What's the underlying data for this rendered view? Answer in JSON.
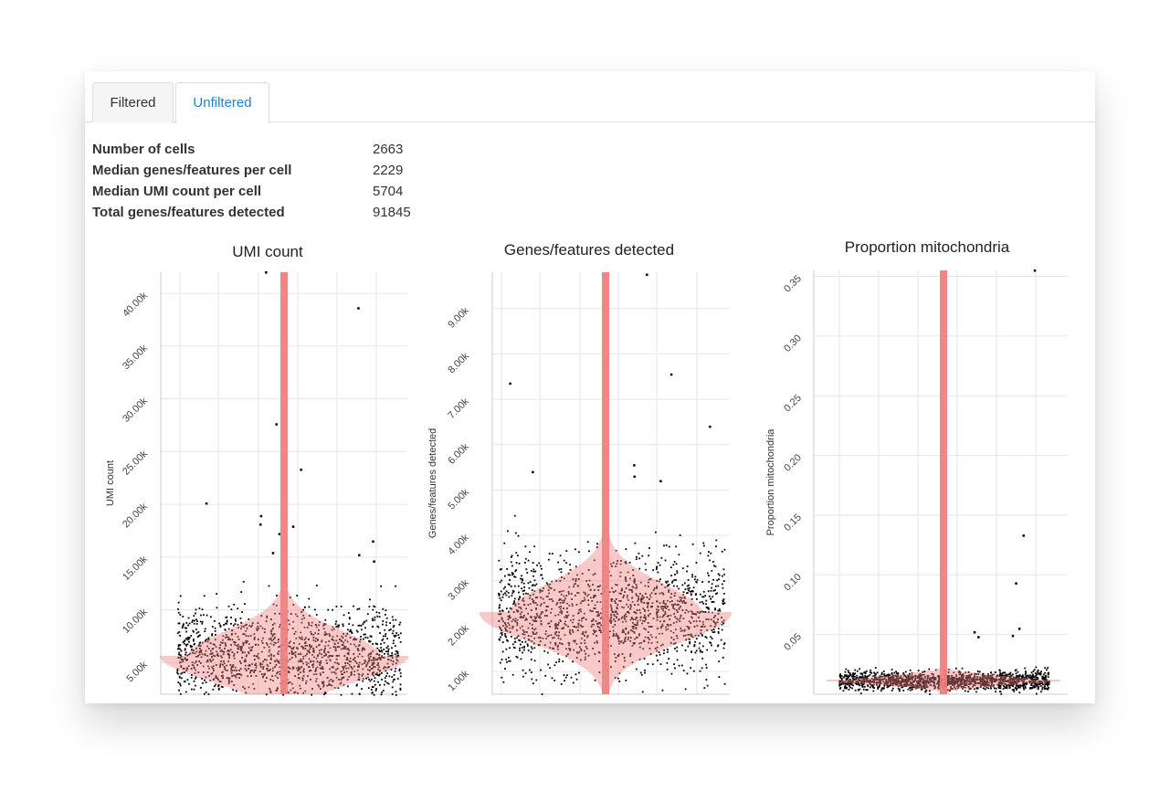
{
  "tabs": {
    "filtered_label": "Filtered",
    "unfiltered_label": "Unfiltered",
    "active": "Unfiltered"
  },
  "summary": [
    {
      "label": "Number of cells",
      "value": "2663"
    },
    {
      "label": "Median genes/features per cell",
      "value": "2229"
    },
    {
      "label": "Median UMI count per cell",
      "value": "5704"
    },
    {
      "label": "Total genes/features detected",
      "value": "91845"
    }
  ],
  "colors": {
    "points": "#000000",
    "violin": "#f08080",
    "tab_active_text": "#1a85d6",
    "grid": "#e6e6e6"
  },
  "chart_data": [
    {
      "type": "scatter",
      "subtype": "beeswarm with violin",
      "title": "UMI count",
      "ylabel": "UMI count",
      "ylim": [
        2000,
        42000
      ],
      "ytick_labels": [
        "5.00k",
        "10.00k",
        "15.00k",
        "20.00k",
        "25.00k",
        "30.00k",
        "35.00k",
        "40.00k"
      ],
      "ytick_values": [
        5000,
        10000,
        15000,
        20000,
        25000,
        30000,
        35000,
        40000
      ],
      "center": 5700,
      "spread": 2400,
      "n_points": 2663,
      "outliers": [
        42000,
        38600,
        27600,
        23300,
        20100,
        18900,
        18100,
        17900,
        17200,
        16500,
        15400,
        15200,
        14600
      ],
      "grid": true
    },
    {
      "type": "scatter",
      "subtype": "beeswarm with violin",
      "title": "Genes/features detected",
      "ylabel": "Genes/features detected",
      "ylim": [
        500,
        9800
      ],
      "ytick_labels": [
        "1.00k",
        "2.00k",
        "3.00k",
        "4.00k",
        "5.00k",
        "6.00k",
        "7.00k",
        "8.00k",
        "9.00k"
      ],
      "ytick_values": [
        1000,
        2000,
        3000,
        4000,
        5000,
        6000,
        7000,
        8000,
        9000
      ],
      "center": 2300,
      "spread": 650,
      "n_points": 2663,
      "outliers": [
        9750,
        7550,
        7350,
        6400,
        5550,
        5400,
        5300,
        5200
      ],
      "grid": true
    },
    {
      "type": "scatter",
      "subtype": "beeswarm with violin",
      "title": "Proportion mitochondria",
      "ylabel": "Proportion mitochondria",
      "ylim": [
        0,
        0.355
      ],
      "ytick_labels": [
        "0.05",
        "0.10",
        "0.15",
        "0.20",
        "0.25",
        "0.30",
        "0.35"
      ],
      "ytick_values": [
        0.05,
        0.1,
        0.15,
        0.2,
        0.25,
        0.3,
        0.35
      ],
      "center": 0.012,
      "spread": 0.004,
      "n_points": 2663,
      "outliers": [
        0.355,
        0.133,
        0.093,
        0.055,
        0.052,
        0.049,
        0.048
      ],
      "grid": true
    }
  ]
}
